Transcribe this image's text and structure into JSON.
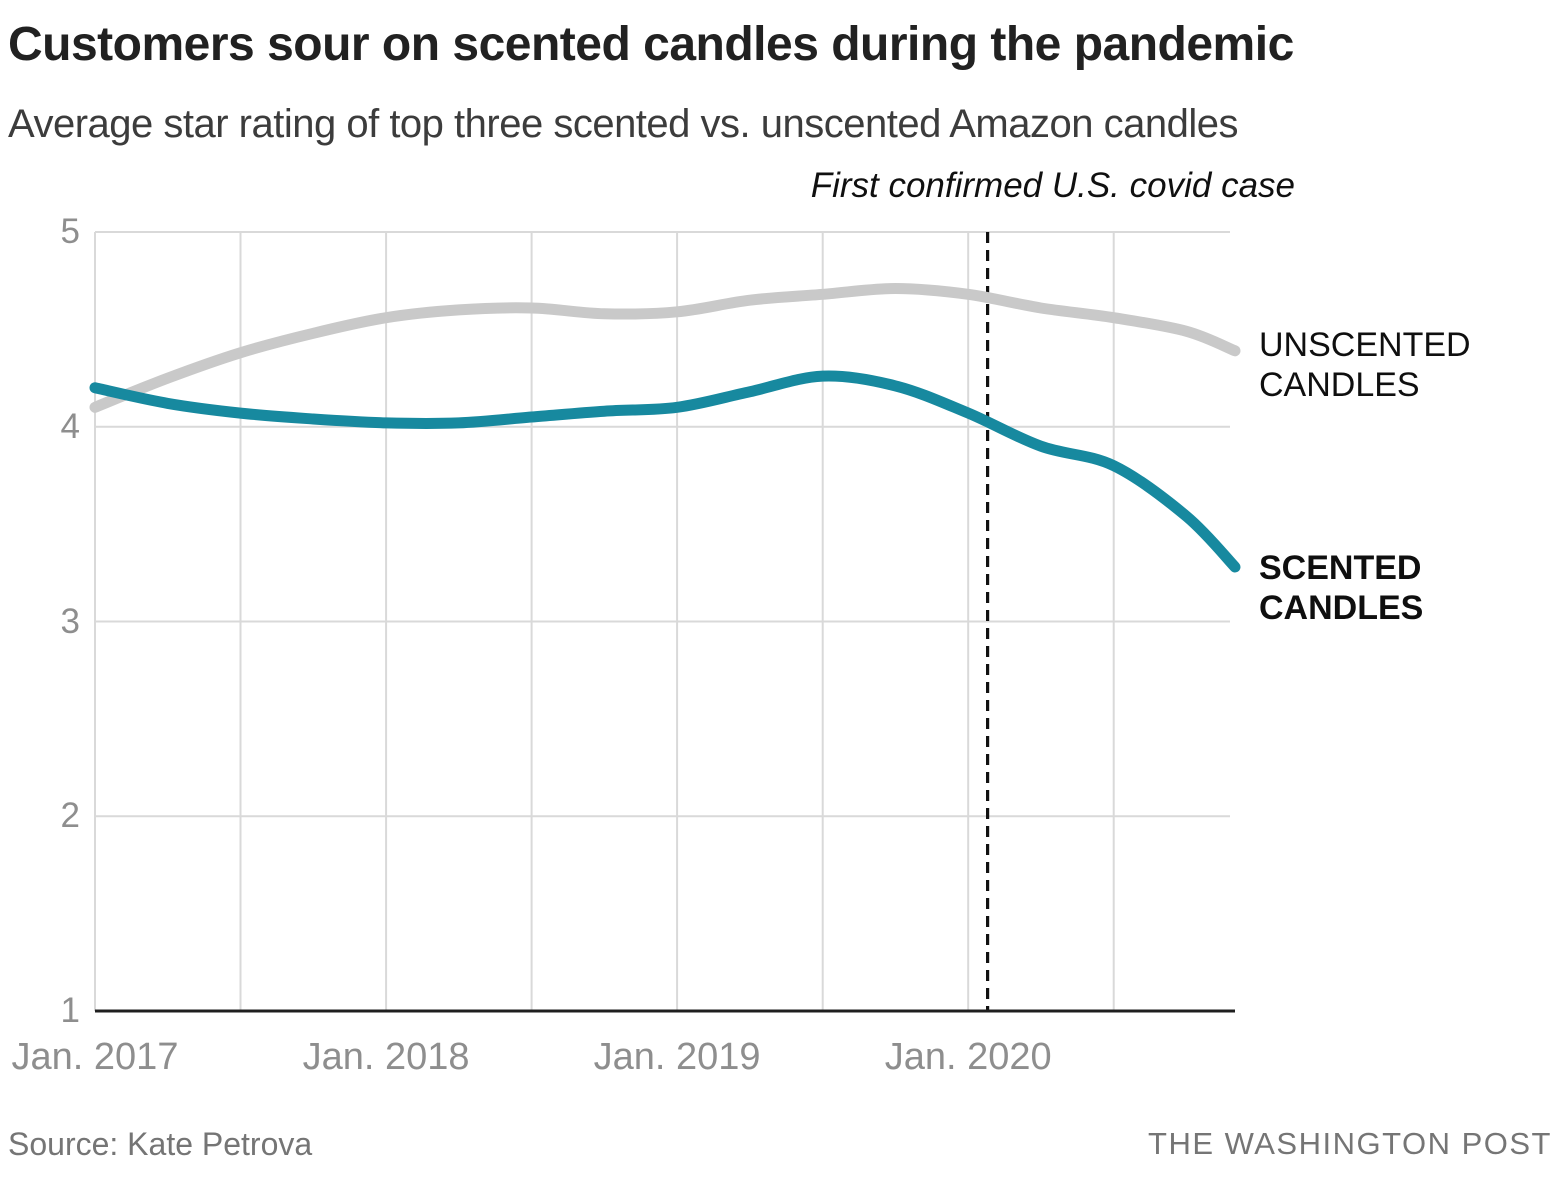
{
  "header": {
    "title": "Customers sour on scented candles during the pandemic",
    "subtitle": "Average star rating of top three scented vs. unscented Amazon candles"
  },
  "annotation": {
    "text": "First confirmed U.S. covid case"
  },
  "footer": {
    "source": "Source: Kate Petrova",
    "credit": "THE WASHINGTON POST"
  },
  "chart_data": {
    "type": "line",
    "title": "Customers sour on scented candles during the pandemic",
    "subtitle": "Average star rating of top three scented vs. unscented Amazon candles",
    "xlabel": "",
    "ylabel": "Average star rating",
    "x_unit": "months since Jan 2017",
    "xlim_months": [
      0,
      47
    ],
    "ylim": [
      1,
      5
    ],
    "grid": true,
    "legend_position": "right-of-line-ends",
    "y_ticks": [
      1,
      2,
      3,
      4,
      5
    ],
    "x_ticks": [
      {
        "label": "Jan. 2017",
        "month": 0
      },
      {
        "label": "Jan. 2018",
        "month": 12
      },
      {
        "label": "Jan. 2019",
        "month": 24
      },
      {
        "label": "Jan. 2020",
        "month": 36
      }
    ],
    "x_grid_months": [
      0,
      6,
      12,
      18,
      24,
      30,
      36,
      42
    ],
    "event_marker": {
      "label": "First confirmed U.S. covid case",
      "month": 36.8,
      "style": "dashed-vertical",
      "color": "#111111"
    },
    "colors": {
      "grid": "#d9d9d9",
      "axis": "#1f1f1f",
      "tick_text": "#8e8e8e"
    },
    "series": [
      {
        "name": "UNSCENTED CANDLES",
        "label": "UNSCENTED\nCANDLES",
        "color": "#c9c9c9",
        "bold_label": false,
        "points": [
          [
            0,
            4.1
          ],
          [
            3,
            4.25
          ],
          [
            6,
            4.38
          ],
          [
            9,
            4.48
          ],
          [
            12,
            4.56
          ],
          [
            15,
            4.6
          ],
          [
            18,
            4.61
          ],
          [
            21,
            4.58
          ],
          [
            24,
            4.59
          ],
          [
            27,
            4.65
          ],
          [
            30,
            4.68
          ],
          [
            33,
            4.71
          ],
          [
            36,
            4.68
          ],
          [
            39,
            4.61
          ],
          [
            42,
            4.56
          ],
          [
            45,
            4.49
          ],
          [
            47,
            4.39
          ]
        ]
      },
      {
        "name": "SCENTED CANDLES",
        "label": "SCENTED\nCANDLES",
        "color": "#17899f",
        "bold_label": true,
        "points": [
          [
            0,
            4.2
          ],
          [
            3,
            4.12
          ],
          [
            6,
            4.07
          ],
          [
            9,
            4.04
          ],
          [
            12,
            4.02
          ],
          [
            15,
            4.02
          ],
          [
            18,
            4.05
          ],
          [
            21,
            4.08
          ],
          [
            24,
            4.1
          ],
          [
            27,
            4.18
          ],
          [
            30,
            4.26
          ],
          [
            33,
            4.21
          ],
          [
            36,
            4.07
          ],
          [
            39,
            3.9
          ],
          [
            42,
            3.8
          ],
          [
            45,
            3.54
          ],
          [
            47,
            3.28
          ]
        ]
      }
    ]
  }
}
